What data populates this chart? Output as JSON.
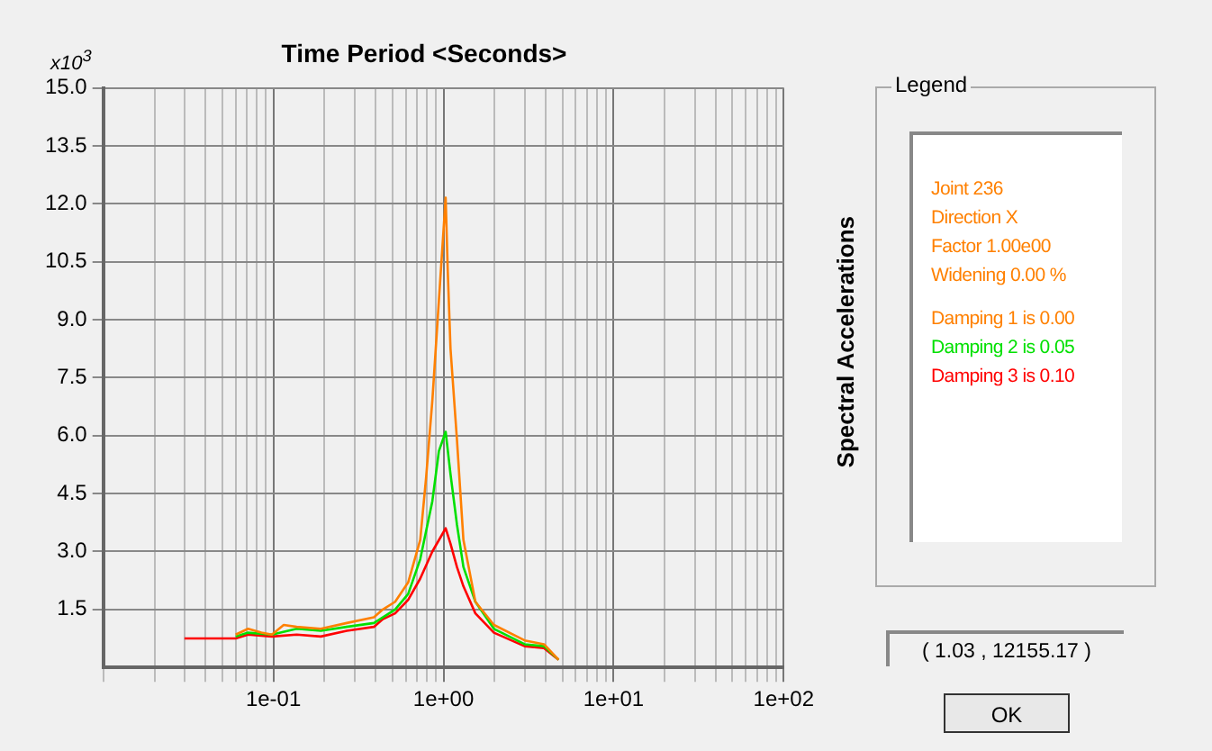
{
  "chart_data": {
    "type": "line",
    "title": "Time Period <Seconds>",
    "ylabel": "Spectral Accelerations",
    "legend_title": "Legend",
    "log": "x",
    "grid": true,
    "legend": "right",
    "marker": "none",
    "line_style": "solid",
    "xlim": [
      0.01,
      100
    ],
    "ylim": [
      0,
      15
    ],
    "xticks": [
      {
        "value": 0.01,
        "label": null
      },
      {
        "value": 0.02,
        "label": null
      },
      {
        "value": 0.03,
        "label": null
      },
      {
        "value": 0.04,
        "label": null
      },
      {
        "value": 0.05,
        "label": null
      },
      {
        "value": 0.06,
        "label": null
      },
      {
        "value": 0.07,
        "label": null
      },
      {
        "value": 0.08,
        "label": null
      },
      {
        "value": 0.09,
        "label": null
      },
      {
        "value": 0.1,
        "label": "1e-01"
      },
      {
        "value": 0.2,
        "label": null
      },
      {
        "value": 0.3,
        "label": null
      },
      {
        "value": 0.4,
        "label": null
      },
      {
        "value": 0.5,
        "label": null
      },
      {
        "value": 0.6,
        "label": null
      },
      {
        "value": 0.7,
        "label": null
      },
      {
        "value": 0.8,
        "label": null
      },
      {
        "value": 0.9,
        "label": null
      },
      {
        "value": 1,
        "label": "1e+00"
      },
      {
        "value": 2,
        "label": null
      },
      {
        "value": 3,
        "label": null
      },
      {
        "value": 4,
        "label": null
      },
      {
        "value": 5,
        "label": null
      },
      {
        "value": 6,
        "label": null
      },
      {
        "value": 7,
        "label": null
      },
      {
        "value": 8,
        "label": null
      },
      {
        "value": 9,
        "label": null
      },
      {
        "value": 10,
        "label": "1e+01"
      },
      {
        "value": 20,
        "label": null
      },
      {
        "value": 30,
        "label": null
      },
      {
        "value": 40,
        "label": null
      },
      {
        "value": 50,
        "label": null
      },
      {
        "value": 60,
        "label": null
      },
      {
        "value": 70,
        "label": null
      },
      {
        "value": 80,
        "label": null
      },
      {
        "value": 90,
        "label": null
      },
      {
        "value": 100,
        "label": "1e+02"
      }
    ],
    "yticks": [
      1.5,
      {
        "value": 3,
        "label": "3.0"
      },
      4.5,
      {
        "value": 6,
        "label": "6.0"
      },
      7.5,
      {
        "value": 9,
        "label": "9.0"
      },
      10.5,
      {
        "value": 12,
        "label": "12.0"
      },
      13.5,
      {
        "value": 15,
        "label": "15.0"
      }
    ],
    "annotations": [
      "x10$^{3}$",
      "Joint 236",
      "Direction X",
      "Factor 1.00e00",
      "Widening 0.00 %",
      "( 1.03 , 12155.17 )",
      "OK"
    ],
    "series": [
      {
        "name": "Damping 1 is 0.00",
        "color": "#ff8000",
        "x": [
          0.06,
          0.071,
          0.085,
          0.098,
          0.115,
          0.137,
          0.19,
          0.27,
          0.39,
          0.44,
          0.52,
          0.62,
          0.73,
          0.79,
          0.86,
          0.94,
          1.03,
          1.06,
          1.1,
          1.2,
          1.31,
          1.54,
          1.98,
          3.0,
          3.9,
          4.75
        ],
        "values": [
          0.85,
          1.0,
          0.9,
          0.85,
          1.1,
          1.05,
          1.0,
          1.15,
          1.3,
          1.5,
          1.7,
          2.2,
          3.3,
          4.9,
          6.9,
          9.5,
          12.16,
          10.25,
          8.25,
          5.9,
          3.3,
          1.7,
          1.1,
          0.7,
          0.6,
          0.2
        ]
      },
      {
        "name": "Damping 2 is 0.05",
        "color": "#00e000",
        "x": [
          0.06,
          0.071,
          0.098,
          0.137,
          0.19,
          0.27,
          0.39,
          0.52,
          0.62,
          0.73,
          0.86,
          0.94,
          1.03,
          1.1,
          1.2,
          1.31,
          1.54,
          1.98,
          3.0,
          3.9,
          4.75
        ],
        "values": [
          0.8,
          0.9,
          0.85,
          1.0,
          0.95,
          1.05,
          1.15,
          1.5,
          1.9,
          2.8,
          4.3,
          5.6,
          6.1,
          5.0,
          3.7,
          2.6,
          1.7,
          1.0,
          0.6,
          0.55,
          0.2
        ]
      },
      {
        "name": "Damping 3 is 0.10",
        "color": "#ff0000",
        "x": [
          0.03,
          0.06,
          0.071,
          0.098,
          0.137,
          0.19,
          0.27,
          0.39,
          0.44,
          0.52,
          0.62,
          0.73,
          0.86,
          1.03,
          1.1,
          1.2,
          1.31,
          1.54,
          1.98,
          3.0,
          3.9,
          4.75
        ],
        "values": [
          0.75,
          0.75,
          0.85,
          0.8,
          0.85,
          0.8,
          0.95,
          1.05,
          1.25,
          1.4,
          1.75,
          2.3,
          3.0,
          3.6,
          3.2,
          2.6,
          2.1,
          1.4,
          0.9,
          0.55,
          0.5,
          0.2
        ]
      }
    ]
  }
}
